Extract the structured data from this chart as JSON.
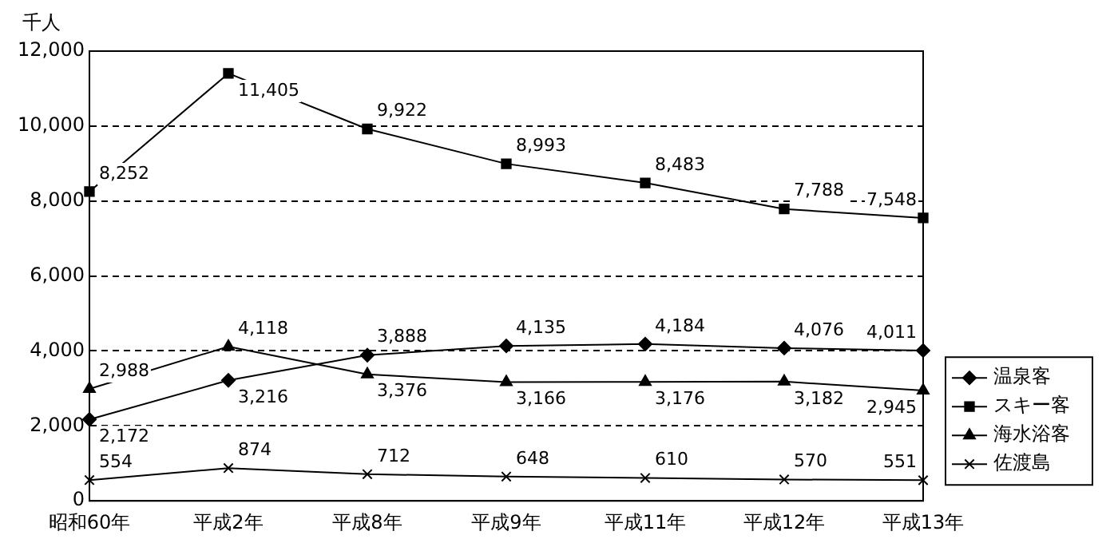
{
  "chart_data": {
    "type": "line",
    "ylabel": "千人",
    "categories": [
      "昭和60年",
      "平成2年",
      "平成8年",
      "平成9年",
      "平成11年",
      "平成12年",
      "平成13年"
    ],
    "series": [
      {
        "name": "温泉客",
        "color": "#000000",
        "marker": "diamond",
        "values": [
          2172,
          3216,
          3888,
          4135,
          4184,
          4076,
          4011
        ],
        "value_labels": [
          "2,172",
          "3,216",
          "3,888",
          "4,135",
          "4,184",
          "4,076",
          "4,011"
        ]
      },
      {
        "name": "スキー客",
        "color": "#000000",
        "marker": "square",
        "values": [
          8252,
          11405,
          9922,
          8993,
          8483,
          7788,
          7548
        ],
        "value_labels": [
          "8,252",
          "11,405",
          "9,922",
          "8,993",
          "8,483",
          "7,788",
          "7,548"
        ]
      },
      {
        "name": "海水浴客",
        "color": "#000000",
        "marker": "triangle",
        "values": [
          2988,
          4118,
          3376,
          3166,
          3176,
          3182,
          2945
        ],
        "value_labels": [
          "2,988",
          "4,118",
          "3,376",
          "3,166",
          "3,176",
          "3,182",
          "2,945"
        ]
      },
      {
        "name": "佐渡島",
        "color": "#000000",
        "marker": "cross",
        "values": [
          554,
          874,
          712,
          648,
          610,
          570,
          551
        ],
        "value_labels": [
          "554",
          "874",
          "712",
          "648",
          "610",
          "570",
          "551"
        ]
      }
    ],
    "ylim": [
      0,
      12000
    ],
    "yticks": [
      {
        "value": 0,
        "label": "0"
      },
      {
        "value": 2000,
        "label": "2,000"
      },
      {
        "value": 4000,
        "label": "4,000"
      },
      {
        "value": 6000,
        "label": "6,000"
      },
      {
        "value": 8000,
        "label": "8,000"
      },
      {
        "value": 10000,
        "label": "10,000"
      },
      {
        "value": 12000,
        "label": "12,000"
      }
    ],
    "grid": "y",
    "legend": "bottom right",
    "line_style": "solid"
  }
}
